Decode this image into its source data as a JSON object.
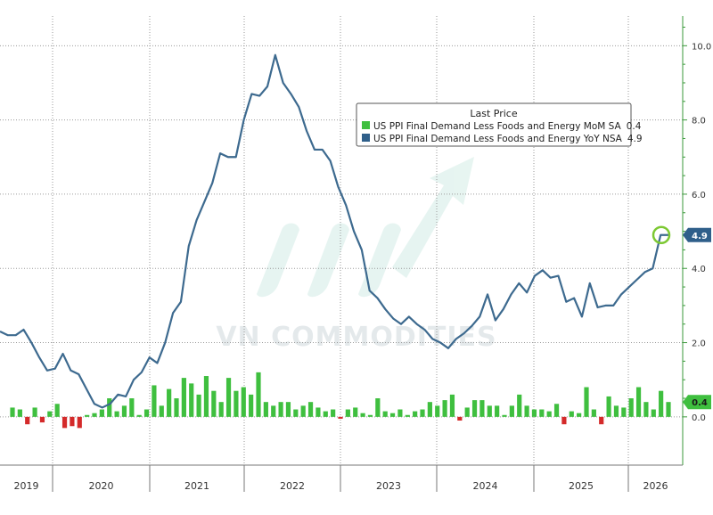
{
  "chart_data": {
    "type": "line",
    "legend_title": "Last Price",
    "legend_placement": "top-center",
    "watermark": "VN COMMODITIES",
    "colors": {
      "line": "#3d6a8f",
      "bar_positive": "#3fbf3f",
      "bar_negative": "#d42a2a",
      "grid": "#9a9a9a",
      "axis": "#3a9a3a",
      "highlight_circle": "#7cc832"
    },
    "ylim": [
      -1.3,
      10.8
    ],
    "y_ticks": [
      "10.0",
      "8.0",
      "6.0",
      "4.0",
      "2.0",
      "0.0"
    ],
    "grid": true,
    "x_labels": [
      "2019",
      "2020",
      "2021",
      "2022",
      "2023",
      "2024",
      "2025",
      "2026"
    ],
    "series": [
      {
        "name": "US PPI Final Demand Less Foods and Energy MoM SA",
        "last": "0.4",
        "type": "bar",
        "values": [
          0.25,
          0.2,
          -0.2,
          0.25,
          -0.15,
          0.15,
          0.35,
          -0.3,
          -0.25,
          -0.3,
          0.05,
          0.1,
          0.2,
          0.5,
          0.15,
          0.3,
          0.5,
          0.05,
          0.2,
          0.85,
          0.3,
          0.75,
          0.5,
          1.05,
          0.9,
          0.6,
          1.1,
          0.7,
          0.4,
          1.05,
          0.7,
          0.8,
          0.6,
          1.2,
          0.4,
          0.3,
          0.4,
          0.4,
          0.2,
          0.3,
          0.4,
          0.25,
          0.15,
          0.2,
          -0.05,
          0.2,
          0.25,
          0.1,
          0.05,
          0.5,
          0.15,
          0.1,
          0.2,
          0.05,
          0.15,
          0.2,
          0.4,
          0.3,
          0.45,
          0.6,
          -0.1,
          0.25,
          0.45,
          0.45,
          0.3,
          0.3,
          0.05,
          0.3,
          0.6,
          0.3,
          0.2,
          0.2,
          0.15,
          0.35,
          -0.2,
          0.15,
          0.1,
          0.8,
          0.2,
          -0.2,
          0.55,
          0.3,
          0.25,
          0.5,
          0.8,
          0.4,
          0.2,
          0.7,
          0.4
        ]
      },
      {
        "name": "US PPI Final Demand Less Foods and Energy YoY NSA",
        "last": "4.9",
        "type": "line",
        "values": [
          2.3,
          2.2,
          2.2,
          2.35,
          2.0,
          1.6,
          1.25,
          1.3,
          1.7,
          1.25,
          1.15,
          0.75,
          0.35,
          0.25,
          0.35,
          0.6,
          0.55,
          1.0,
          1.2,
          1.6,
          1.45,
          2.0,
          2.8,
          3.1,
          4.6,
          5.3,
          5.8,
          6.3,
          7.1,
          7.0,
          7.0,
          8.0,
          8.7,
          8.65,
          8.9,
          9.75,
          9.0,
          8.7,
          8.35,
          7.7,
          7.2,
          7.2,
          6.9,
          6.2,
          5.7,
          5.0,
          4.5,
          3.4,
          3.2,
          2.9,
          2.65,
          2.5,
          2.7,
          2.5,
          2.35,
          2.1,
          2.0,
          1.85,
          2.1,
          2.25,
          2.45,
          2.7,
          3.3,
          2.6,
          2.9,
          3.3,
          3.6,
          3.35,
          3.8,
          3.95,
          3.75,
          3.8,
          3.1,
          3.2,
          2.7,
          3.6,
          2.95,
          3.0,
          3.0,
          3.3,
          3.5,
          3.7,
          3.9,
          4.0,
          4.9,
          4.9
        ]
      }
    ]
  }
}
